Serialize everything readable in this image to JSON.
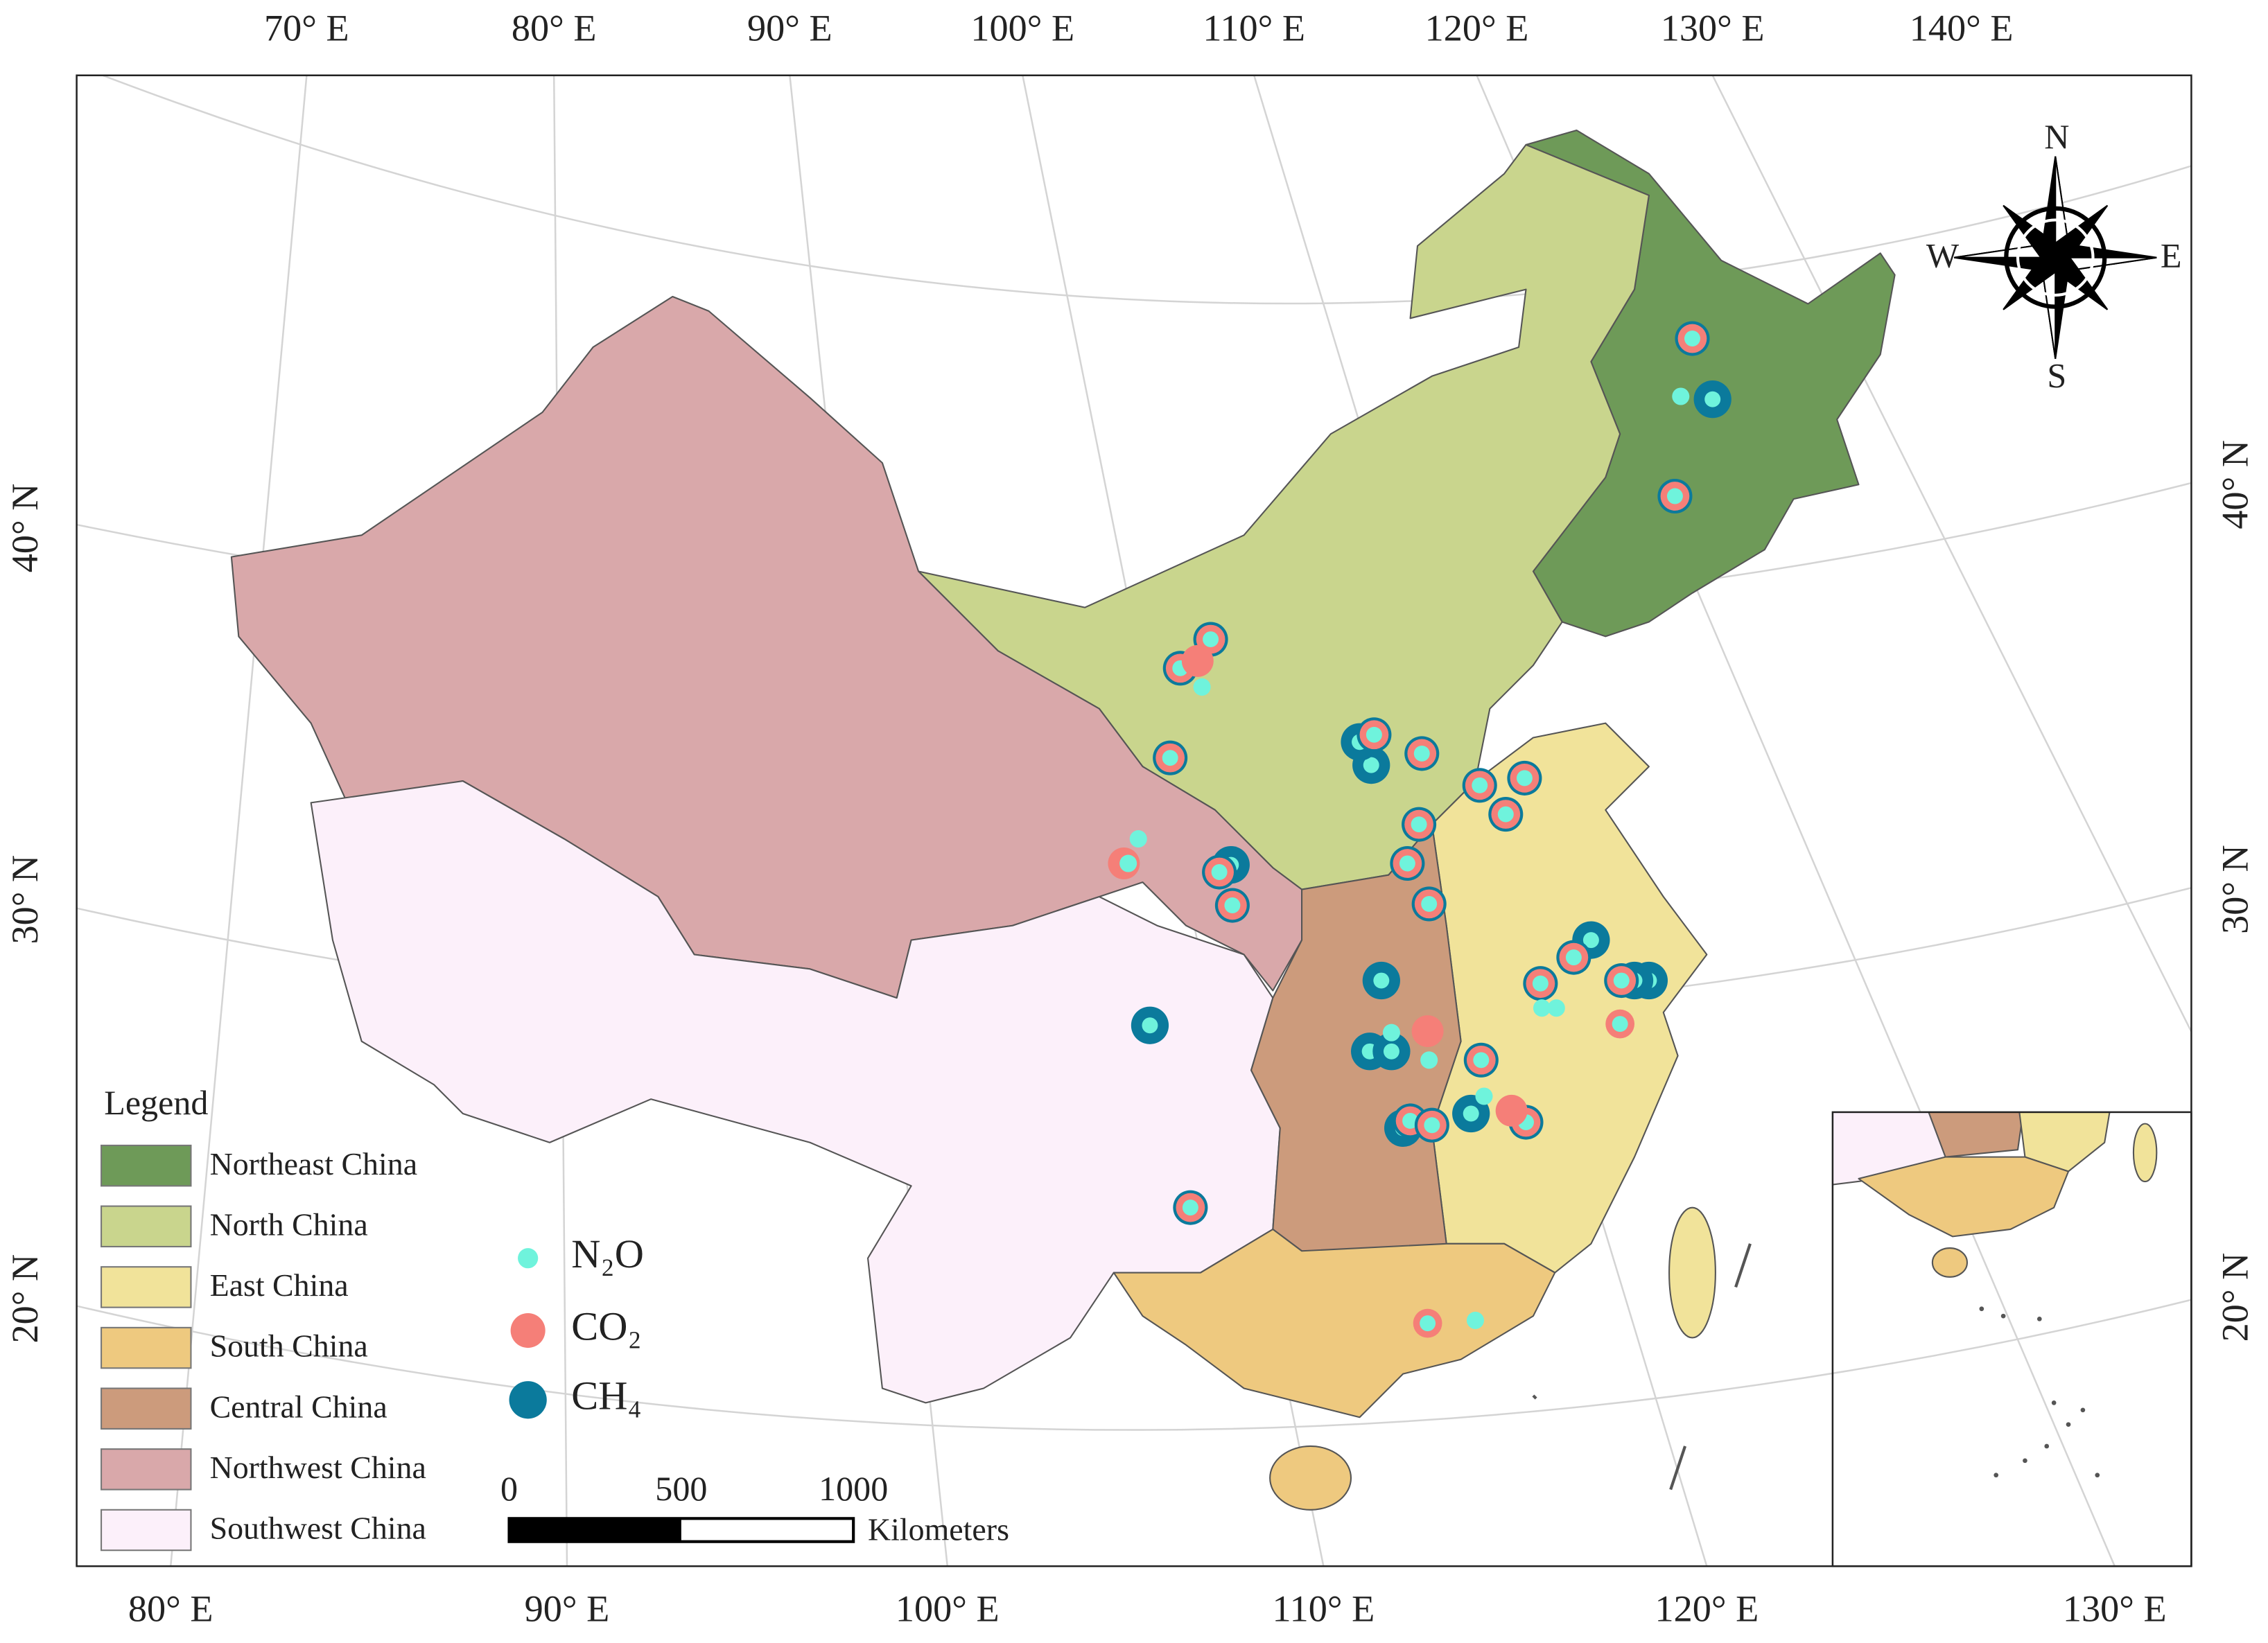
{
  "top_lon_labels": [
    "70° E",
    "80° E",
    "90° E",
    "100° E",
    "110° E",
    "120° E",
    "130° E",
    "140° E"
  ],
  "bottom_lon_labels": [
    "80° E",
    "90° E",
    "100° E",
    "110° E",
    "120° E",
    "130° E"
  ],
  "left_lat_labels": [
    "40° N",
    "30° N",
    "20° N"
  ],
  "right_lat_labels": [
    "40° N",
    "30° N",
    "20° N"
  ],
  "compass": {
    "north": "N",
    "south": "S",
    "west": "W",
    "east": "E"
  },
  "legend": {
    "title": "Legend",
    "items": [
      {
        "label": "Northeast China",
        "color": "#6e9a58"
      },
      {
        "label": "North China",
        "color": "#c9d58d"
      },
      {
        "label": "East China",
        "color": "#f1e39a"
      },
      {
        "label": "South China",
        "color": "#eec97f"
      },
      {
        "label": "Central China",
        "color": "#cc9b7c"
      },
      {
        "label": "Northwest China",
        "color": "#d9a8aa"
      },
      {
        "label": "Southwest China",
        "color": "#fcf0fa"
      }
    ]
  },
  "gas_legend": [
    {
      "label": "N₂O",
      "color": "#6ff3dc"
    },
    {
      "label": "CO₂",
      "color": "#f57f78"
    },
    {
      "label": "CH₄",
      "color": "#0b7a9c"
    }
  ],
  "scale_bar": {
    "ticks": [
      0,
      500,
      1000
    ],
    "unit": "Kilometers"
  }
}
